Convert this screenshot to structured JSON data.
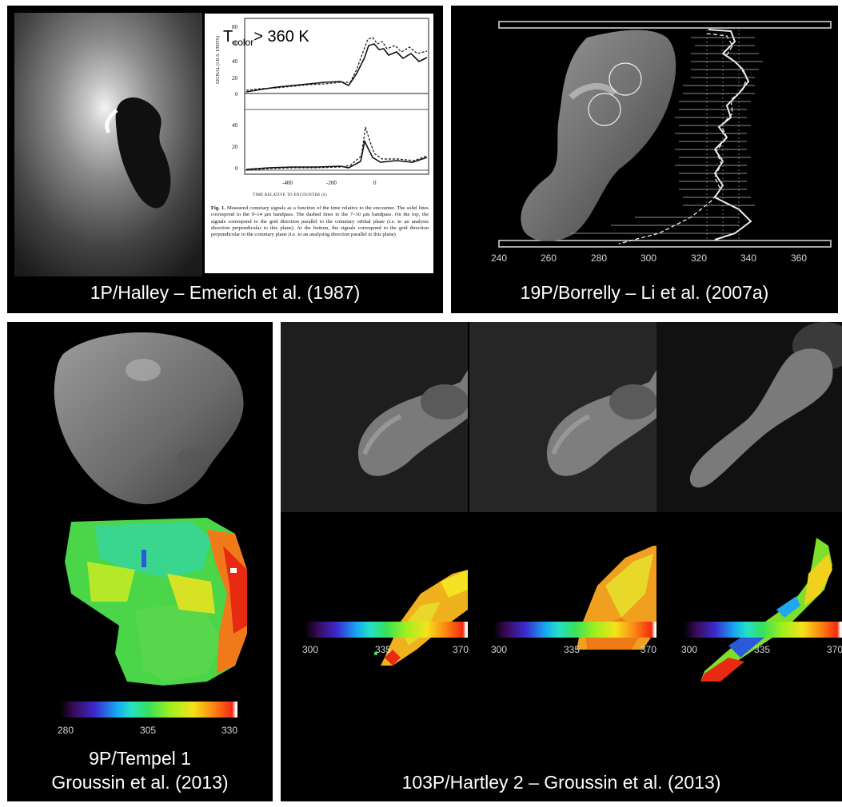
{
  "panels": {
    "halley": {
      "caption": "1P/Halley – Emerich et al. (1987)",
      "annotation": "T",
      "annotation_sub": "color",
      "annotation_rest": "> 360 K",
      "figure": {
        "y_axis_label": "SIGNAL (I.R.S. UNITS)",
        "top_ticks": [
          "80",
          "60",
          "40",
          "20",
          "0"
        ],
        "bottom_ticks": [
          "40",
          "20",
          "0"
        ],
        "x_ticks": [
          "-400",
          "-200",
          "0"
        ],
        "x_axis_label": "TIME RELATIVE TO ENCOUNTER (S)",
        "fig_label": "Fig. 1.",
        "fig_caption": "Measured cometary signals as a function of the time relative to the encounter. The solid lines correspond to the 9–14 μm bandpass. The dashed lines to the 7–10 μm bandpass. On the top, the signals correspond to the grid direction parallel to the cometary orbital plane (i.e. to an analysis direction perpendicular to this plane). At the bottom, the signals correspond to the grid direction perpendicular to the cometary plane (i.e. to an analysing direction parallel to this plane)"
      }
    },
    "borrelly": {
      "caption": "19P/Borrelly – Li et al. (2007a)",
      "x_ticks": [
        "240",
        "260",
        "280",
        "300",
        "320",
        "340",
        "360"
      ]
    },
    "tempel": {
      "caption_line1": "9P/Tempel 1",
      "caption_line2": "Groussin et al. (2013)",
      "colorbar_ticks": [
        "280",
        "305",
        "330"
      ]
    },
    "hartley": {
      "caption": "103P/Hartley 2 – Groussin et al. (2013)",
      "colorbars": [
        {
          "ticks": [
            "300",
            "335",
            "370"
          ]
        },
        {
          "ticks": [
            "300",
            "335",
            "370"
          ]
        },
        {
          "ticks": [
            "300",
            "335",
            "370"
          ]
        }
      ]
    }
  }
}
